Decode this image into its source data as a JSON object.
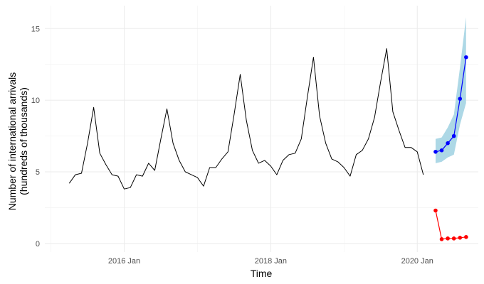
{
  "chart_data": {
    "type": "line",
    "xlabel": "Time",
    "ylabel": [
      "Number of international arrivals",
      "(hundreds of thousands)"
    ],
    "ylim": [
      -0.6,
      16.6
    ],
    "xlim": [
      "2014-12",
      "2020-11"
    ],
    "grid": true,
    "x_ticks": [
      {
        "date": "2016-01",
        "label": "2016 Jan"
      },
      {
        "date": "2018-01",
        "label": "2018 Jan"
      },
      {
        "date": "2020-01",
        "label": "2020 Jan"
      }
    ],
    "y_ticks": [
      0,
      5,
      10,
      15
    ],
    "series": [
      {
        "role": "observed",
        "color": "#000000",
        "start": "2015-04",
        "values": [
          4.2,
          4.8,
          4.9,
          7.0,
          9.5,
          6.3,
          5.5,
          4.8,
          4.7,
          3.8,
          3.9,
          4.8,
          4.7,
          5.6,
          5.1,
          7.3,
          9.4,
          7.0,
          5.8,
          5.0,
          4.8,
          4.6,
          4.0,
          5.3,
          5.3,
          5.9,
          6.4,
          9.0,
          11.8,
          8.6,
          6.5,
          5.6,
          5.8,
          5.4,
          4.8,
          5.8,
          6.2,
          6.3,
          7.3,
          10.2,
          13.0,
          8.9,
          7.0,
          5.9,
          5.7,
          5.3,
          4.7,
          6.2,
          6.5,
          7.3,
          8.8,
          11.3,
          13.6,
          9.2,
          7.9,
          6.7,
          6.7,
          6.4,
          4.8
        ]
      },
      {
        "role": "forecast-upper",
        "color": "#0000ff",
        "start": "2020-04",
        "values": [
          6.4,
          6.5,
          7.0,
          7.5,
          10.1,
          13.0
        ],
        "interval": {
          "color": "#add8e6",
          "lower": [
            5.6,
            5.7,
            6.0,
            6.2,
            8.3,
            9.8
          ],
          "upper": [
            7.3,
            7.4,
            8.1,
            9.0,
            12.3,
            15.8
          ]
        }
      },
      {
        "role": "forecast-lower",
        "color": "#ff0000",
        "start": "2020-04",
        "values": [
          2.3,
          0.3,
          0.35,
          0.35,
          0.4,
          0.45
        ]
      }
    ]
  }
}
